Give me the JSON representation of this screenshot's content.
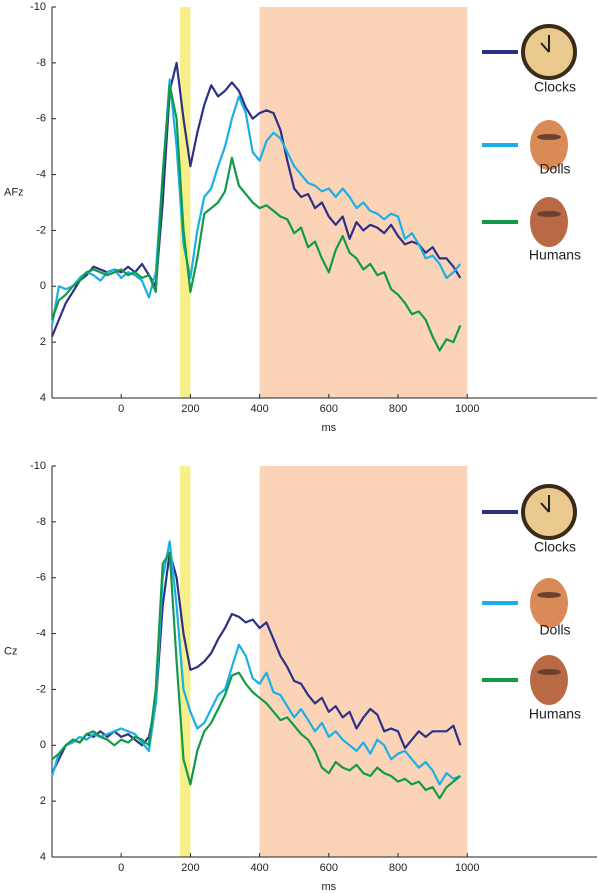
{
  "chart_data": [
    {
      "type": "line",
      "y_label": "AFz",
      "x_label": "ms",
      "xlim": [
        -200,
        1375
      ],
      "ylim": [
        -10,
        4
      ],
      "y_inverted": true,
      "xticks": [
        0,
        200,
        400,
        600,
        800,
        1000
      ],
      "yticks": [
        -10,
        -8,
        -6,
        -4,
        -2,
        0,
        2,
        4
      ],
      "legend": "right",
      "shaded_regions": [
        {
          "x": [
            170,
            200
          ],
          "color": "#f7f08a"
        },
        {
          "x": [
            400,
            1000
          ],
          "color": "#fbd4b8"
        }
      ],
      "x": [
        -200,
        -180,
        -160,
        -140,
        -120,
        -100,
        -80,
        -60,
        -40,
        -20,
        0,
        20,
        40,
        60,
        80,
        100,
        120,
        140,
        160,
        180,
        200,
        220,
        240,
        260,
        280,
        300,
        320,
        340,
        360,
        380,
        400,
        420,
        440,
        460,
        480,
        500,
        520,
        540,
        560,
        580,
        600,
        620,
        640,
        660,
        680,
        700,
        720,
        740,
        760,
        780,
        800,
        820,
        840,
        860,
        880,
        900,
        920,
        940,
        960,
        980
      ],
      "series": [
        {
          "name": "Clocks",
          "color": "#2e3087",
          "values": [
            1.8,
            1.2,
            0.6,
            0.2,
            -0.2,
            -0.4,
            -0.7,
            -0.6,
            -0.5,
            -0.6,
            -0.5,
            -0.7,
            -0.5,
            -0.8,
            -0.4,
            0.0,
            -3,
            -7,
            -8,
            -6,
            -4.3,
            -5.5,
            -6.5,
            -7.2,
            -6.8,
            -7.0,
            -7.3,
            -7.0,
            -6.4,
            -6.0,
            -6.2,
            -6.3,
            -6.2,
            -5.6,
            -4.5,
            -3.5,
            -3.2,
            -3.3,
            -2.8,
            -3.0,
            -2.5,
            -2.2,
            -2.5,
            -1.7,
            -2.3,
            -2.0,
            -2.2,
            -2.1,
            -1.9,
            -2.2,
            -1.8,
            -1.5,
            -1.6,
            -1.5,
            -1.2,
            -1.4,
            -1.0,
            -1.0,
            -0.7,
            -0.3
          ]
        },
        {
          "name": "Dolls",
          "color": "#1aafe6",
          "values": [
            1.4,
            0.0,
            0.1,
            0.0,
            -0.3,
            -0.5,
            -0.4,
            -0.2,
            -0.5,
            -0.6,
            -0.3,
            -0.5,
            -0.4,
            -0.2,
            0.4,
            -0.5,
            -4,
            -7.4,
            -5,
            -1.5,
            -0.3,
            -2.0,
            -3.2,
            -3.5,
            -4.3,
            -5.0,
            -6.0,
            -6.8,
            -6.2,
            -4.8,
            -4.5,
            -5.2,
            -5.5,
            -5.3,
            -4.8,
            -4.3,
            -4.0,
            -3.7,
            -3.6,
            -3.4,
            -3.5,
            -3.2,
            -3.5,
            -3.2,
            -2.8,
            -3.0,
            -2.7,
            -2.6,
            -2.4,
            -2.6,
            -2.5,
            -1.7,
            -1.9,
            -1.5,
            -1.0,
            -1.1,
            -0.8,
            -0.3,
            -0.5,
            -0.8
          ]
        },
        {
          "name": "Humans",
          "color": "#139a48",
          "values": [
            1.2,
            0.5,
            0.3,
            0.0,
            -0.2,
            -0.5,
            -0.6,
            -0.5,
            -0.4,
            -0.5,
            -0.6,
            -0.4,
            -0.5,
            -0.3,
            -0.4,
            0.2,
            -4,
            -7.2,
            -6,
            -2,
            0.2,
            -1.0,
            -2.6,
            -2.8,
            -3.0,
            -3.4,
            -4.6,
            -3.6,
            -3.3,
            -3.0,
            -2.8,
            -2.9,
            -2.7,
            -2.5,
            -2.4,
            -1.9,
            -2.1,
            -1.4,
            -1.6,
            -1.0,
            -0.5,
            -1.3,
            -1.8,
            -1.2,
            -1.0,
            -0.6,
            -0.8,
            -0.4,
            -0.5,
            0.1,
            0.3,
            0.6,
            1.0,
            0.9,
            1.2,
            1.8,
            2.3,
            1.9,
            2.0,
            1.4
          ]
        }
      ]
    },
    {
      "type": "line",
      "y_label": "Cz",
      "x_label": "ms",
      "xlim": [
        -200,
        1375
      ],
      "ylim": [
        -10,
        4
      ],
      "y_inverted": true,
      "xticks": [
        0,
        200,
        400,
        600,
        800,
        1000
      ],
      "yticks": [
        -10,
        -8,
        -6,
        -4,
        -2,
        0,
        2,
        4
      ],
      "legend": "right",
      "shaded_regions": [
        {
          "x": [
            170,
            200
          ],
          "color": "#f7f08a"
        },
        {
          "x": [
            400,
            1000
          ],
          "color": "#fbd4b8"
        }
      ],
      "x": [
        -200,
        -180,
        -160,
        -140,
        -120,
        -100,
        -80,
        -60,
        -40,
        -20,
        0,
        20,
        40,
        60,
        80,
        100,
        120,
        140,
        160,
        180,
        200,
        220,
        240,
        260,
        280,
        300,
        320,
        340,
        360,
        380,
        400,
        420,
        440,
        460,
        480,
        500,
        520,
        540,
        560,
        580,
        600,
        620,
        640,
        660,
        680,
        700,
        720,
        740,
        760,
        780,
        800,
        820,
        840,
        860,
        880,
        900,
        920,
        940,
        960,
        980
      ],
      "series": [
        {
          "name": "Clocks",
          "color": "#2e3087",
          "values": [
            1.0,
            0.5,
            0.0,
            -0.2,
            -0.1,
            -0.4,
            -0.3,
            -0.5,
            -0.3,
            -0.5,
            -0.3,
            -0.4,
            -0.2,
            0.0,
            -0.3,
            -1.5,
            -5,
            -6.9,
            -6.0,
            -4,
            -2.7,
            -2.8,
            -3.0,
            -3.3,
            -3.8,
            -4.2,
            -4.7,
            -4.6,
            -4.4,
            -4.5,
            -4.2,
            -4.4,
            -3.8,
            -3.2,
            -2.8,
            -2.3,
            -2.2,
            -1.8,
            -1.5,
            -1.7,
            -1.2,
            -1.4,
            -1.0,
            -1.2,
            -0.6,
            -1.0,
            -1.3,
            -1.1,
            -0.5,
            -0.6,
            -0.5,
            0.1,
            -0.2,
            -0.5,
            -0.3,
            -0.5,
            -0.5,
            -0.5,
            -0.7,
            0.0
          ]
        },
        {
          "name": "Dolls",
          "color": "#1aafe6",
          "values": [
            1.1,
            0.3,
            0.0,
            -0.1,
            -0.3,
            -0.2,
            -0.4,
            -0.3,
            -0.4,
            -0.5,
            -0.6,
            -0.5,
            -0.4,
            -0.1,
            0.2,
            -1.5,
            -6,
            -7.3,
            -5.0,
            -2,
            -1.2,
            -0.6,
            -0.8,
            -1.3,
            -1.8,
            -2.0,
            -2.8,
            -3.6,
            -3.2,
            -2.4,
            -2.2,
            -2.6,
            -1.9,
            -1.8,
            -1.4,
            -1.0,
            -1.3,
            -0.9,
            -0.5,
            -0.8,
            -0.3,
            -0.5,
            -0.2,
            0.0,
            0.2,
            -0.1,
            0.3,
            -0.2,
            0.0,
            0.5,
            0.3,
            0.2,
            0.5,
            0.8,
            0.6,
            0.9,
            1.4,
            1.0,
            1.2,
            1.1
          ]
        },
        {
          "name": "Humans",
          "color": "#139a48",
          "values": [
            0.5,
            0.3,
            0.0,
            -0.2,
            -0.1,
            -0.4,
            -0.5,
            -0.3,
            -0.2,
            0.0,
            -0.2,
            -0.1,
            -0.3,
            -0.2,
            0.0,
            -2.0,
            -6.5,
            -6.9,
            -3.0,
            0.5,
            1.4,
            0.2,
            -0.5,
            -0.8,
            -1.3,
            -1.8,
            -2.5,
            -2.6,
            -2.2,
            -1.9,
            -1.7,
            -1.5,
            -1.2,
            -0.9,
            -1.0,
            -0.7,
            -0.4,
            -0.2,
            0.2,
            0.8,
            1.0,
            0.6,
            0.8,
            0.9,
            0.7,
            1.0,
            1.1,
            0.8,
            1.0,
            1.1,
            1.3,
            1.2,
            1.4,
            1.3,
            1.6,
            1.5,
            1.9,
            1.5,
            1.3,
            1.1
          ]
        }
      ]
    }
  ]
}
